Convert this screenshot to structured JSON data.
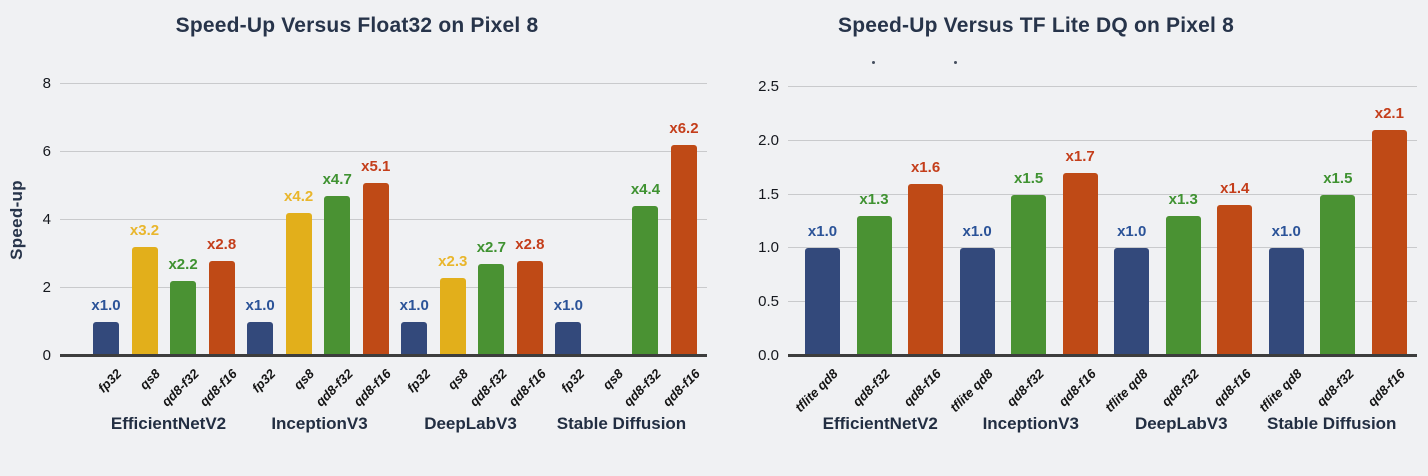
{
  "colors": {
    "background": "#f0f1f3",
    "grid": "#c9cacc",
    "axis": "#3d3d3d",
    "title_text": "#27344a",
    "tick_text": "#15181e",
    "series": {
      "blue": {
        "bar": "#33497b",
        "label": "#2b5398"
      },
      "yellow": {
        "bar": "#e2af1b",
        "label": "#e9b62c"
      },
      "green": {
        "bar": "#4a9233",
        "label": "#3f9231"
      },
      "red": {
        "bar": "#bf4a16",
        "label": "#c43e1b"
      }
    }
  },
  "chart_data": [
    {
      "type": "bar",
      "title": "Speed-Up Versus Float32 on Pixel 8",
      "ylabel": "Speed-up",
      "xlabel": "",
      "ylim": [
        0,
        8
      ],
      "ymax": 8,
      "grid": true,
      "legend": "none",
      "yticks": [
        "0",
        "2",
        "4",
        "6",
        "8"
      ],
      "groups": [
        {
          "label": "EfficientNetV2",
          "bars": [
            {
              "x": "fp32",
              "value": 1.0,
              "display": "x1.0",
              "series": "blue"
            },
            {
              "x": "qs8",
              "value": 3.2,
              "display": "x3.2",
              "series": "yellow"
            },
            {
              "x": "qd8-f32",
              "value": 2.2,
              "display": "x2.2",
              "series": "green"
            },
            {
              "x": "qd8-f16",
              "value": 2.8,
              "display": "x2.8",
              "series": "red"
            }
          ]
        },
        {
          "label": "InceptionV3",
          "bars": [
            {
              "x": "fp32",
              "value": 1.0,
              "display": "x1.0",
              "series": "blue"
            },
            {
              "x": "qs8",
              "value": 4.2,
              "display": "x4.2",
              "series": "yellow"
            },
            {
              "x": "qd8-f32",
              "value": 4.7,
              "display": "x4.7",
              "series": "green"
            },
            {
              "x": "qd8-f16",
              "value": 5.1,
              "display": "x5.1",
              "series": "red"
            }
          ]
        },
        {
          "label": "DeepLabV3",
          "bars": [
            {
              "x": "fp32",
              "value": 1.0,
              "display": "x1.0",
              "series": "blue"
            },
            {
              "x": "qs8",
              "value": 2.3,
              "display": "x2.3",
              "series": "yellow"
            },
            {
              "x": "qd8-f32",
              "value": 2.7,
              "display": "x2.7",
              "series": "green"
            },
            {
              "x": "qd8-f16",
              "value": 2.8,
              "display": "x2.8",
              "series": "red"
            }
          ]
        },
        {
          "label": "Stable Diffusion",
          "bars": [
            {
              "x": "fp32",
              "value": 1.0,
              "display": "x1.0",
              "series": "blue"
            },
            {
              "x": "qs8",
              "value": null,
              "display": "",
              "series": "yellow"
            },
            {
              "x": "qd8-f32",
              "value": 4.4,
              "display": "x4.4",
              "series": "green"
            },
            {
              "x": "qd8-f16",
              "value": 6.2,
              "display": "x6.2",
              "series": "red"
            }
          ]
        }
      ]
    },
    {
      "type": "bar",
      "title": "Speed-Up Versus TF Lite DQ on Pixel 8",
      "ylabel": "",
      "xlabel": "",
      "ylim": [
        0,
        2.5
      ],
      "ymax": 2.5,
      "grid": true,
      "legend": "none",
      "yticks": [
        "0.0",
        "0.5",
        "1.0",
        "1.5",
        "2.0",
        "2.5"
      ],
      "groups": [
        {
          "label": "EfficientNetV2",
          "bars": [
            {
              "x": "tflite qd8",
              "value": 1.0,
              "display": "x1.0",
              "series": "blue"
            },
            {
              "x": "qd8-f32",
              "value": 1.3,
              "display": "x1.3",
              "series": "green"
            },
            {
              "x": "qd8-f16",
              "value": 1.6,
              "display": "x1.6",
              "series": "red"
            }
          ]
        },
        {
          "label": "InceptionV3",
          "bars": [
            {
              "x": "tflite qd8",
              "value": 1.0,
              "display": "x1.0",
              "series": "blue"
            },
            {
              "x": "qd8-f32",
              "value": 1.5,
              "display": "x1.5",
              "series": "green"
            },
            {
              "x": "qd8-f16",
              "value": 1.7,
              "display": "x1.7",
              "series": "red"
            }
          ]
        },
        {
          "label": "DeepLabV3",
          "bars": [
            {
              "x": "tflite qd8",
              "value": 1.0,
              "display": "x1.0",
              "series": "blue"
            },
            {
              "x": "qd8-f32",
              "value": 1.3,
              "display": "x1.3",
              "series": "green"
            },
            {
              "x": "qd8-f16",
              "value": 1.4,
              "display": "x1.4",
              "series": "red"
            }
          ]
        },
        {
          "label": "Stable Diffusion",
          "bars": [
            {
              "x": "tflite qd8",
              "value": 1.0,
              "display": "x1.0",
              "series": "blue"
            },
            {
              "x": "qd8-f32",
              "value": 1.5,
              "display": "x1.5",
              "series": "green"
            },
            {
              "x": "qd8-f16",
              "value": 2.1,
              "display": "x2.1",
              "series": "red"
            }
          ]
        }
      ]
    }
  ]
}
